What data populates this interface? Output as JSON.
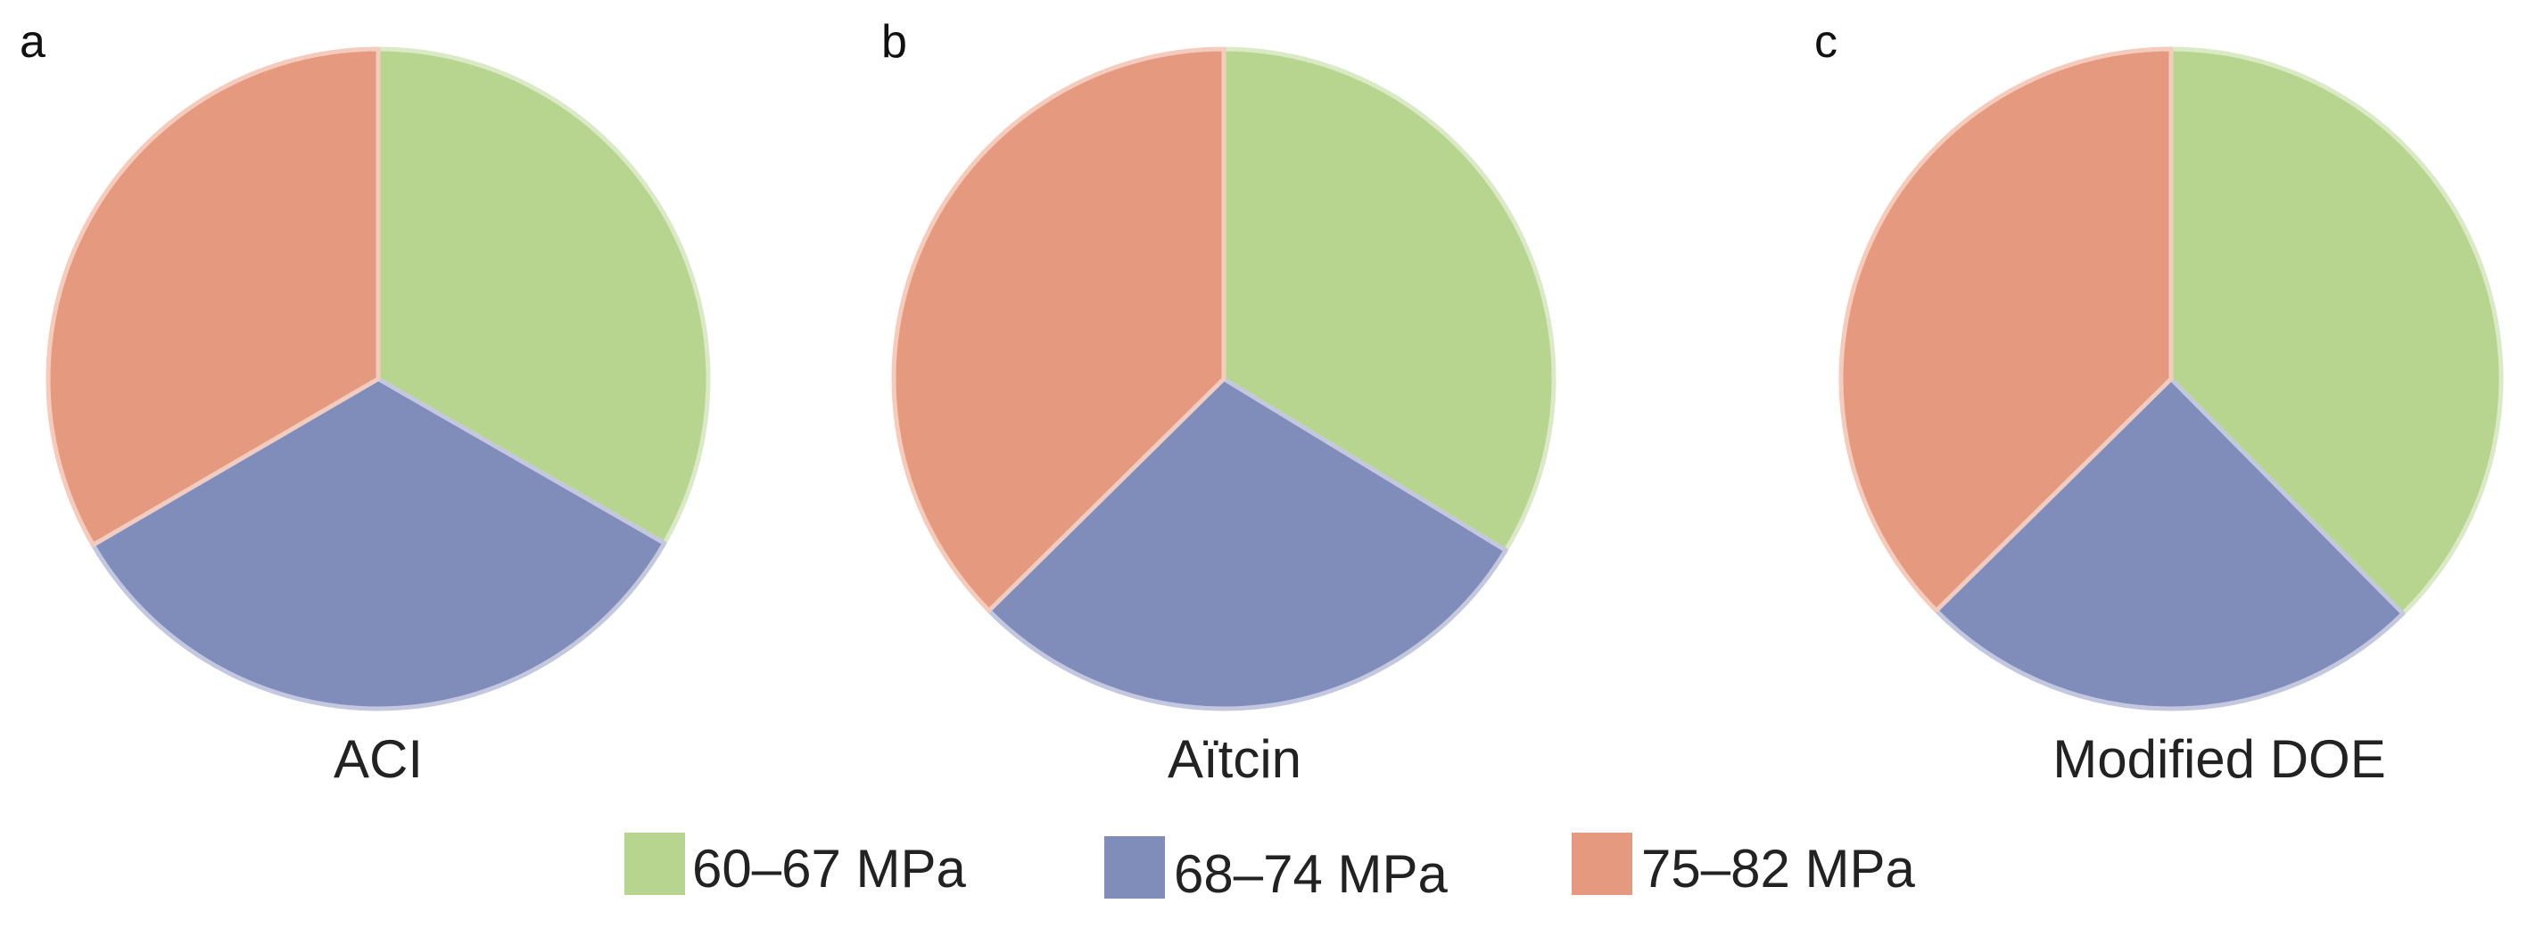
{
  "chart_data": [
    {
      "type": "pie",
      "panel_label": "a",
      "caption": "ACI",
      "categories": [
        "60–67 MPa",
        "68–74 MPa",
        "75–82 MPa"
      ],
      "values": [
        33.3,
        33.3,
        33.4
      ]
    },
    {
      "type": "pie",
      "panel_label": "b",
      "caption": "Aïtcin",
      "categories": [
        "60–67 MPa",
        "68–74 MPa",
        "75–82 MPa"
      ],
      "values": [
        33.7,
        28.9,
        37.4
      ]
    },
    {
      "type": "pie",
      "panel_label": "c",
      "caption": "Modified DOE",
      "categories": [
        "60–67 MPa",
        "68–74 MPa",
        "75–82 MPa"
      ],
      "values": [
        37.6,
        25.0,
        37.4
      ]
    }
  ],
  "legend": {
    "placement": "bottom",
    "items": [
      {
        "label": "60–67 MPa",
        "color": "#b7d58f"
      },
      {
        "label": "68–74 MPa",
        "color": "#808cb9"
      },
      {
        "label": "75–82 MPa",
        "color": "#e59a80"
      }
    ]
  }
}
